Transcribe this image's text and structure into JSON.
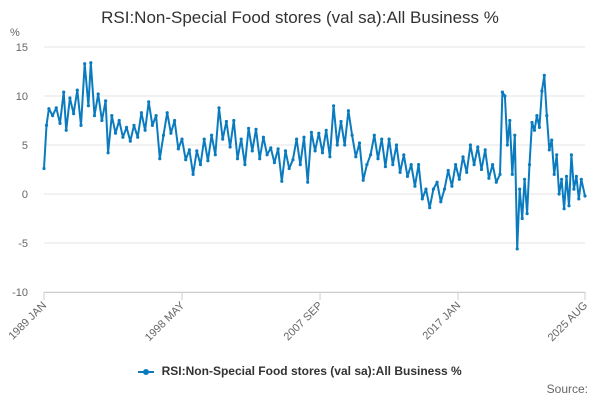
{
  "chart_data": {
    "type": "line",
    "title": "RSI:Non-Special Food stores (val sa):All Business %",
    "ylabel": "%",
    "xlabel": "",
    "ylim": [
      -10,
      15
    ],
    "yticks": [
      -10,
      -5,
      0,
      5,
      10,
      15
    ],
    "xlim": [
      "1989-01",
      "2025-08"
    ],
    "xtick_labels": [
      "1989 JAN",
      "1998 MAY",
      "2007 SEP",
      "2017 JAN",
      "2025 AUG"
    ],
    "xtick_dates": [
      "1989-01",
      "1998-05",
      "2007-09",
      "2017-01",
      "2025-08"
    ],
    "grid": "horizontal",
    "legend": "bottom-center",
    "series": [
      {
        "name": "RSI:Non-Special Food stores (val sa):All Business %",
        "color": "#0b7bbf",
        "points": [
          [
            "1989-01",
            2.6
          ],
          [
            "1989-03",
            7.0
          ],
          [
            "1989-05",
            8.7
          ],
          [
            "1989-08",
            8.0
          ],
          [
            "1989-11",
            8.8
          ],
          [
            "1990-02",
            7.2
          ],
          [
            "1990-05",
            10.4
          ],
          [
            "1990-07",
            6.5
          ],
          [
            "1990-10",
            9.8
          ],
          [
            "1991-01",
            8.2
          ],
          [
            "1991-04",
            10.6
          ],
          [
            "1991-07",
            7.0
          ],
          [
            "1991-10",
            13.3
          ],
          [
            "1992-01",
            9.0
          ],
          [
            "1992-03",
            13.4
          ],
          [
            "1992-06",
            8.0
          ],
          [
            "1992-09",
            10.2
          ],
          [
            "1992-12",
            7.5
          ],
          [
            "1993-03",
            9.5
          ],
          [
            "1993-05",
            4.2
          ],
          [
            "1993-08",
            8.0
          ],
          [
            "1993-11",
            6.2
          ],
          [
            "1994-02",
            7.5
          ],
          [
            "1994-05",
            5.8
          ],
          [
            "1994-08",
            6.8
          ],
          [
            "1994-11",
            5.4
          ],
          [
            "1995-02",
            7.0
          ],
          [
            "1995-05",
            5.8
          ],
          [
            "1995-08",
            8.3
          ],
          [
            "1995-11",
            6.5
          ],
          [
            "1996-02",
            9.4
          ],
          [
            "1996-05",
            7.0
          ],
          [
            "1996-08",
            8.0
          ],
          [
            "1996-11",
            3.6
          ],
          [
            "1997-02",
            6.0
          ],
          [
            "1997-05",
            8.3
          ],
          [
            "1997-08",
            6.2
          ],
          [
            "1997-11",
            7.5
          ],
          [
            "1998-02",
            4.6
          ],
          [
            "1998-05",
            5.6
          ],
          [
            "1998-08",
            3.5
          ],
          [
            "1998-11",
            4.5
          ],
          [
            "1999-02",
            2.0
          ],
          [
            "1999-05",
            4.4
          ],
          [
            "1999-08",
            3.0
          ],
          [
            "1999-11",
            5.6
          ],
          [
            "2000-02",
            3.4
          ],
          [
            "2000-05",
            6.0
          ],
          [
            "2000-08",
            4.0
          ],
          [
            "2000-11",
            8.8
          ],
          [
            "2001-02",
            5.6
          ],
          [
            "2001-05",
            7.4
          ],
          [
            "2001-08",
            4.8
          ],
          [
            "2001-11",
            7.5
          ],
          [
            "2002-02",
            3.6
          ],
          [
            "2002-05",
            5.6
          ],
          [
            "2002-08",
            3.0
          ],
          [
            "2002-11",
            6.7
          ],
          [
            "2003-02",
            4.4
          ],
          [
            "2003-05",
            6.6
          ],
          [
            "2003-08",
            3.6
          ],
          [
            "2003-11",
            5.8
          ],
          [
            "2004-02",
            4.0
          ],
          [
            "2004-05",
            4.7
          ],
          [
            "2004-08",
            3.2
          ],
          [
            "2004-11",
            4.6
          ],
          [
            "2005-02",
            1.3
          ],
          [
            "2005-05",
            4.4
          ],
          [
            "2005-08",
            2.6
          ],
          [
            "2005-11",
            3.5
          ],
          [
            "2006-02",
            5.6
          ],
          [
            "2006-05",
            3.0
          ],
          [
            "2006-08",
            5.8
          ],
          [
            "2006-11",
            1.2
          ],
          [
            "2007-02",
            6.3
          ],
          [
            "2007-05",
            4.4
          ],
          [
            "2007-08",
            6.2
          ],
          [
            "2007-11",
            4.2
          ],
          [
            "2008-02",
            6.5
          ],
          [
            "2008-05",
            3.8
          ],
          [
            "2008-08",
            9.0
          ],
          [
            "2008-11",
            5.0
          ],
          [
            "2009-02",
            7.4
          ],
          [
            "2009-05",
            5.0
          ],
          [
            "2009-08",
            8.5
          ],
          [
            "2009-11",
            6.0
          ],
          [
            "2010-02",
            3.8
          ],
          [
            "2010-05",
            5.2
          ],
          [
            "2010-08",
            1.4
          ],
          [
            "2010-11",
            3.0
          ],
          [
            "2011-02",
            4.0
          ],
          [
            "2011-05",
            6.0
          ],
          [
            "2011-08",
            3.6
          ],
          [
            "2011-11",
            5.6
          ],
          [
            "2012-02",
            2.8
          ],
          [
            "2012-05",
            5.6
          ],
          [
            "2012-08",
            3.0
          ],
          [
            "2012-11",
            5.0
          ],
          [
            "2013-02",
            2.2
          ],
          [
            "2013-05",
            4.0
          ],
          [
            "2013-08",
            1.8
          ],
          [
            "2013-11",
            3.0
          ],
          [
            "2014-02",
            0.8
          ],
          [
            "2014-05",
            3.0
          ],
          [
            "2014-08",
            -0.5
          ],
          [
            "2014-11",
            0.5
          ],
          [
            "2015-02",
            -1.4
          ],
          [
            "2015-05",
            0.5
          ],
          [
            "2015-08",
            1.2
          ],
          [
            "2015-11",
            -0.8
          ],
          [
            "2016-02",
            0.5
          ],
          [
            "2016-05",
            2.4
          ],
          [
            "2016-08",
            0.8
          ],
          [
            "2016-11",
            3.0
          ],
          [
            "2017-02",
            1.5
          ],
          [
            "2017-05",
            3.8
          ],
          [
            "2017-08",
            2.2
          ],
          [
            "2017-11",
            5.0
          ],
          [
            "2018-02",
            3.0
          ],
          [
            "2018-05",
            4.8
          ],
          [
            "2018-08",
            2.5
          ],
          [
            "2018-11",
            4.5
          ],
          [
            "2019-02",
            1.6
          ],
          [
            "2019-05",
            3.0
          ],
          [
            "2019-08",
            1.2
          ],
          [
            "2019-11",
            2.0
          ],
          [
            "2020-01",
            10.4
          ],
          [
            "2020-03",
            10.0
          ],
          [
            "2020-05",
            5.0
          ],
          [
            "2020-07",
            7.5
          ],
          [
            "2020-09",
            2.0
          ],
          [
            "2020-11",
            6.0
          ],
          [
            "2021-01",
            -5.6
          ],
          [
            "2021-03",
            0.5
          ],
          [
            "2021-05",
            -2.5
          ],
          [
            "2021-07",
            1.5
          ],
          [
            "2021-09",
            -2.0
          ],
          [
            "2021-11",
            3.0
          ],
          [
            "2022-01",
            7.3
          ],
          [
            "2022-03",
            6.5
          ],
          [
            "2022-05",
            8.0
          ],
          [
            "2022-07",
            6.8
          ],
          [
            "2022-09",
            10.5
          ],
          [
            "2022-11",
            12.1
          ],
          [
            "2023-01",
            8.0
          ],
          [
            "2023-03",
            4.5
          ],
          [
            "2023-05",
            5.5
          ],
          [
            "2023-07",
            2.0
          ],
          [
            "2023-09",
            4.0
          ],
          [
            "2023-11",
            0.0
          ],
          [
            "2024-01",
            1.5
          ],
          [
            "2024-03",
            -1.5
          ],
          [
            "2024-05",
            1.8
          ],
          [
            "2024-07",
            -1.2
          ],
          [
            "2024-09",
            4.0
          ],
          [
            "2024-11",
            0.5
          ],
          [
            "2025-01",
            1.8
          ],
          [
            "2025-03",
            -0.5
          ],
          [
            "2025-05",
            1.5
          ],
          [
            "2025-08",
            -0.2
          ]
        ]
      }
    ],
    "source_label": "Source:"
  }
}
